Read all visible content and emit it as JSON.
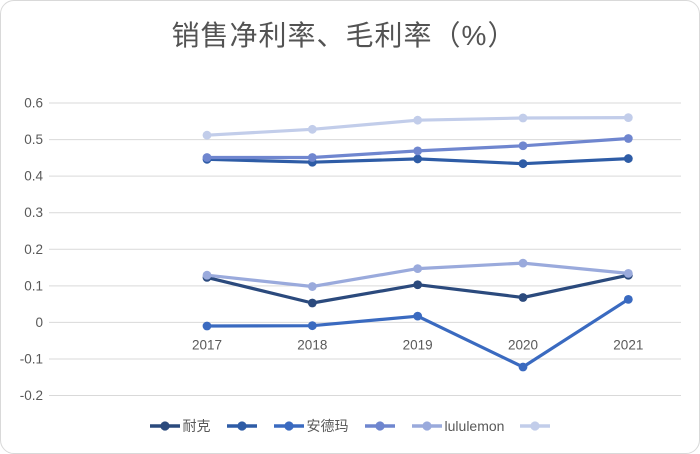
{
  "title": "销售净利率、毛利率（%）",
  "colors": {
    "background": "#FFFFFF",
    "card_border": "#D9D9D9",
    "grid": "#D9D9D9",
    "axis_text": "#595959",
    "title_text": "#535353"
  },
  "chart_data": {
    "type": "line",
    "title": "销售净利率、毛利率（%）",
    "categories": [
      "2017",
      "2018",
      "2019",
      "2020",
      "2021"
    ],
    "series": [
      {
        "legend_label": "耐克",
        "color": "#2B4A7D",
        "values": [
          0.123,
          0.053,
          0.103,
          0.068,
          0.129
        ]
      },
      {
        "legend_label": "",
        "color": "#2E5CA6",
        "values": [
          0.446,
          0.438,
          0.447,
          0.434,
          0.448
        ]
      },
      {
        "legend_label": "安德玛",
        "color": "#3A6AC0",
        "values": [
          -0.01,
          -0.009,
          0.017,
          -0.122,
          0.063
        ]
      },
      {
        "legend_label": "",
        "color": "#6F86CF",
        "values": [
          0.451,
          0.451,
          0.469,
          0.483,
          0.503
        ]
      },
      {
        "legend_label": "lululemon",
        "color": "#9AAADC",
        "values": [
          0.129,
          0.098,
          0.147,
          0.162,
          0.134
        ]
      },
      {
        "legend_label": "",
        "color": "#C2CDEA",
        "values": [
          0.512,
          0.528,
          0.553,
          0.559,
          0.56
        ]
      }
    ],
    "ylim": [
      -0.2,
      0.6
    ],
    "yticks": [
      "0.6",
      "0.5",
      "0.4",
      "0.3",
      "0.2",
      "0.1",
      "0",
      "-0.1",
      "-0.2"
    ],
    "grid": true,
    "legend_position": "bottom",
    "x_labels_position": "next-to-zero-axis",
    "leading_empty_slots": 1
  }
}
